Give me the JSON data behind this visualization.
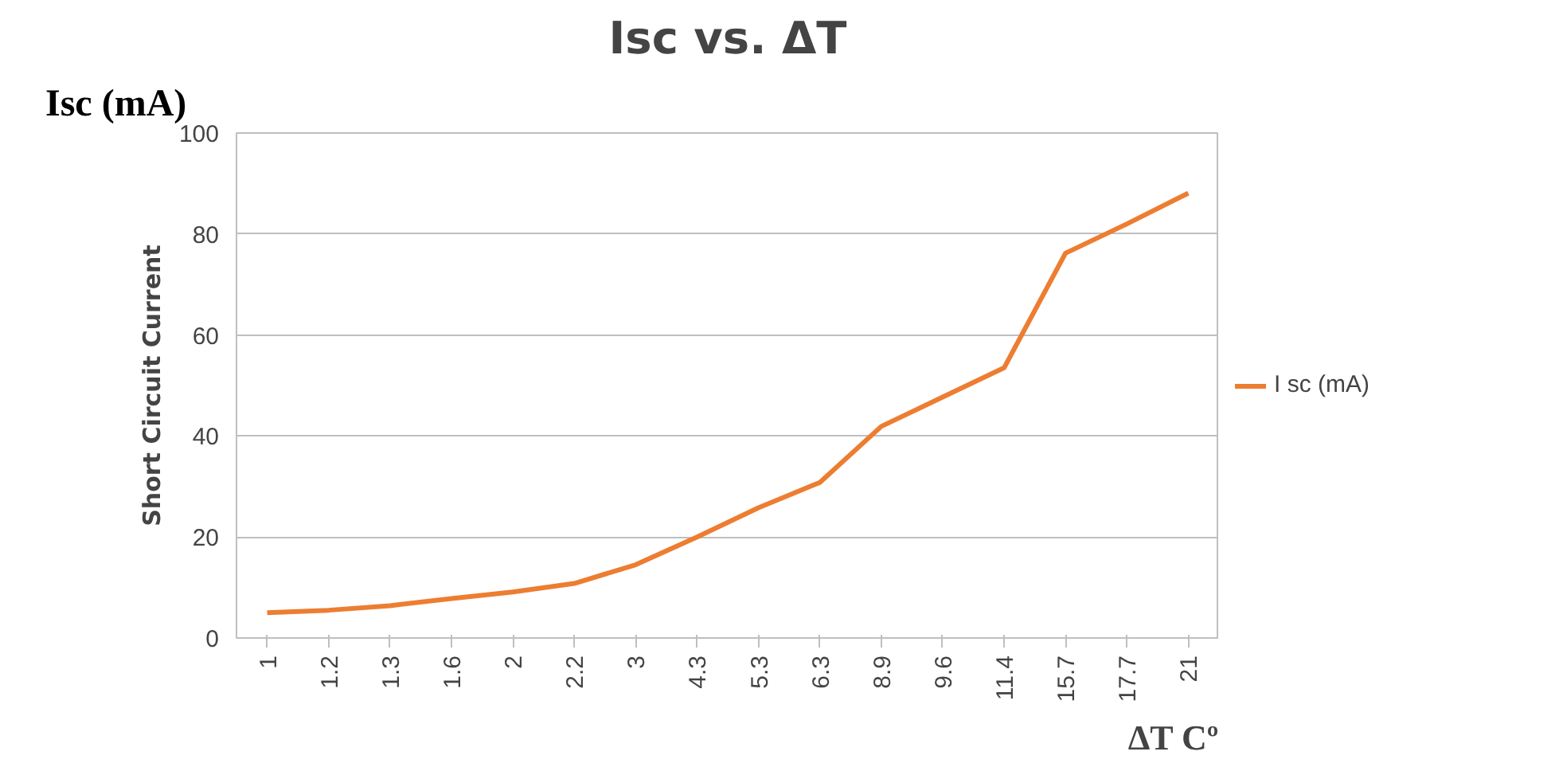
{
  "chart_data": {
    "type": "line",
    "title": "Isc vs. ΔT",
    "xlabel": "ΔT Cº",
    "ylabel": "Short Circuit Current",
    "annotations": [
      "Isc (mA)"
    ],
    "categories": [
      "1",
      "1.2",
      "1.3",
      "1.6",
      "2",
      "2.2",
      "3",
      "4.3",
      "5.3",
      "6.3",
      "8.9",
      "9.6",
      "11.4",
      "15.7",
      "17.7",
      "21"
    ],
    "series": [
      {
        "name": "I sc (mA)",
        "color": "#ed7d31",
        "values": [
          5.0,
          5.5,
          6.4,
          7.8,
          9.1,
          10.8,
          14.5,
          20,
          25.8,
          30.8,
          41.9,
          47.7,
          53.5,
          76.2,
          82,
          88.1
        ]
      }
    ],
    "ylim": [
      0,
      100
    ],
    "yticks": [
      0,
      20,
      40,
      60,
      80,
      100
    ],
    "grid": "y",
    "legend": "right",
    "marker": "none",
    "line_style": "solid"
  }
}
